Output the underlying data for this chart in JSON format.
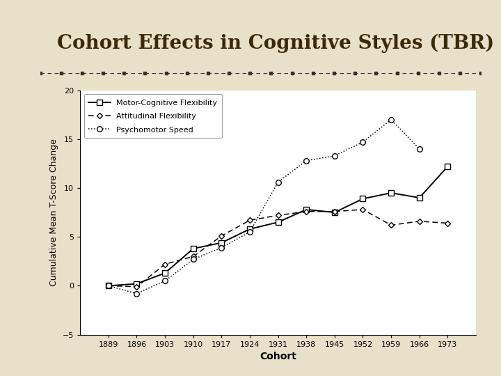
{
  "title": "Cohort Effects in Cognitive Styles (TBR)",
  "cohorts": [
    1889,
    1896,
    1903,
    1910,
    1917,
    1924,
    1931,
    1938,
    1945,
    1952,
    1959,
    1966,
    1973
  ],
  "motor_cognitive_flexibility": [
    0.0,
    0.2,
    1.3,
    3.8,
    4.4,
    5.8,
    6.5,
    7.8,
    7.5,
    8.9,
    9.5,
    9.0,
    12.2
  ],
  "attitudinal_flexibility": [
    0.0,
    -0.1,
    2.2,
    3.0,
    5.1,
    6.7,
    7.2,
    7.6,
    7.6,
    7.8,
    6.2,
    6.6,
    6.4
  ],
  "psychomotor_speed": [
    0.0,
    -0.8,
    0.5,
    2.7,
    3.9,
    5.5,
    10.6,
    12.8,
    13.3,
    14.7,
    17.0,
    14.0
  ],
  "ps_cohort_count": 12,
  "xlabel": "Cohort",
  "ylabel": "Cumulative Mean T-Score Change",
  "ylim": [
    -5,
    20
  ],
  "yticks": [
    -5,
    0,
    5,
    10,
    15,
    20
  ],
  "legend_labels": [
    "Motor-Cognitive Flexibility",
    "Attitudinal Flexibility",
    "Psychomotor Speed"
  ],
  "bg_color": "#e8e0c8",
  "chart_bg": "#ffffff",
  "title_color": "#3b2a0a",
  "title_fontsize": 20,
  "axis_label_fontsize": 9,
  "tick_fontsize": 8,
  "legend_fontsize": 8
}
